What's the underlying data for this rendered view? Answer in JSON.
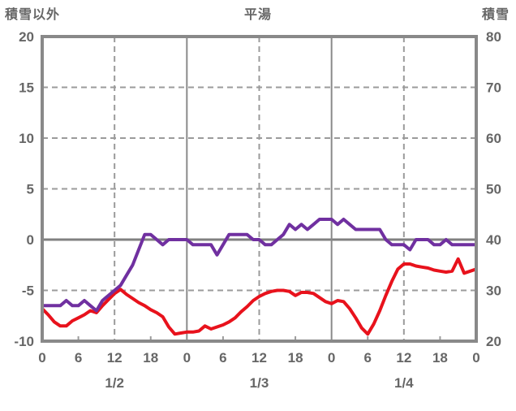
{
  "title": "平湯",
  "left_axis": {
    "label": "積雪以外",
    "ticks": [
      20,
      15,
      10,
      5,
      0,
      -5,
      -10
    ],
    "min": -10,
    "max": 20
  },
  "right_axis": {
    "label": "積雪",
    "ticks": [
      80,
      70,
      60,
      50,
      40,
      30,
      20
    ],
    "min": 20,
    "max": 80
  },
  "x_axis": {
    "hour_tick_labels": [
      "0",
      "6",
      "12",
      "18",
      "0",
      "6",
      "12",
      "18",
      "0",
      "6",
      "12",
      "18",
      "0"
    ],
    "hour_tick_positions": [
      0,
      6,
      12,
      18,
      24,
      30,
      36,
      42,
      48,
      54,
      60,
      66,
      72
    ],
    "date_labels": [
      "1/2",
      "1/3",
      "1/4"
    ],
    "date_label_positions": [
      12,
      36,
      60
    ],
    "total_hours": 72
  },
  "colors": {
    "red_series": "#e8121c",
    "purple_series": "#7030a0",
    "border": "#898989",
    "zero_line": "#808080",
    "day_line": "#8a8a8a",
    "dashed_grid": "#9b9b9b",
    "tick_mark": "#9b9b9b",
    "text": "#666666",
    "background": "#ffffff"
  },
  "chart_data": {
    "type": "line",
    "title": "平湯",
    "x_hours": [
      0,
      1,
      2,
      3,
      4,
      5,
      6,
      7,
      8,
      9,
      10,
      11,
      12,
      13,
      14,
      15,
      16,
      17,
      18,
      19,
      20,
      21,
      22,
      23,
      24,
      25,
      26,
      27,
      28,
      29,
      30,
      31,
      32,
      33,
      34,
      35,
      36,
      37,
      38,
      39,
      40,
      41,
      42,
      43,
      44,
      45,
      46,
      47,
      48,
      49,
      50,
      51,
      52,
      53,
      54,
      55,
      56,
      57,
      58,
      59,
      60,
      61,
      62,
      63,
      64,
      65,
      66,
      67,
      68,
      69,
      70,
      71,
      72
    ],
    "series": [
      {
        "name": "積雪以外",
        "axis": "left",
        "color": "#e8121c",
        "values": [
          -6.8,
          -7.4,
          -8.1,
          -8.5,
          -8.5,
          -8.0,
          -7.7,
          -7.4,
          -7.0,
          -7.2,
          -6.5,
          -5.9,
          -5.3,
          -4.9,
          -5.4,
          -5.8,
          -6.2,
          -6.5,
          -6.9,
          -7.2,
          -7.6,
          -8.6,
          -9.3,
          -9.2,
          -9.1,
          -9.1,
          -9.0,
          -8.5,
          -8.8,
          -8.6,
          -8.4,
          -8.1,
          -7.7,
          -7.1,
          -6.6,
          -6.0,
          -5.6,
          -5.3,
          -5.1,
          -5.0,
          -5.0,
          -5.1,
          -5.5,
          -5.2,
          -5.2,
          -5.3,
          -5.7,
          -6.1,
          -6.3,
          -6.0,
          -6.1,
          -6.8,
          -7.7,
          -8.7,
          -9.3,
          -8.3,
          -7.0,
          -5.5,
          -4.1,
          -2.9,
          -2.4,
          -2.4,
          -2.6,
          -2.7,
          -2.8,
          -3.0,
          -3.1,
          -3.2,
          -3.1,
          -1.9,
          -3.3,
          -3.1,
          -2.9
        ]
      },
      {
        "name": "積雪",
        "axis": "right",
        "color": "#7030a0",
        "values": [
          27,
          27,
          27,
          27,
          28,
          27,
          27,
          28,
          27,
          26,
          28,
          29,
          30,
          31,
          33,
          35,
          38,
          41,
          41,
          40,
          39,
          40,
          40,
          40,
          40,
          39,
          39,
          39,
          39,
          37,
          39,
          41,
          41,
          41,
          41,
          40,
          40,
          39,
          39,
          40,
          41,
          43,
          42,
          43,
          42,
          43,
          44,
          44,
          44,
          43,
          44,
          43,
          42,
          42,
          42,
          42,
          42,
          40,
          39,
          39,
          39,
          38,
          40,
          40,
          40,
          39,
          39,
          40,
          39,
          39,
          39,
          39,
          39
        ]
      }
    ],
    "ylim_left": [
      -10,
      20
    ],
    "ylim_right": [
      20,
      80
    ],
    "xlim_hours": [
      0,
      72
    ],
    "grid": "dashed horizontal every 5 units, dashed vertical at 12:00 each day, solid at value 0 and at day boundaries",
    "legend": "none"
  }
}
